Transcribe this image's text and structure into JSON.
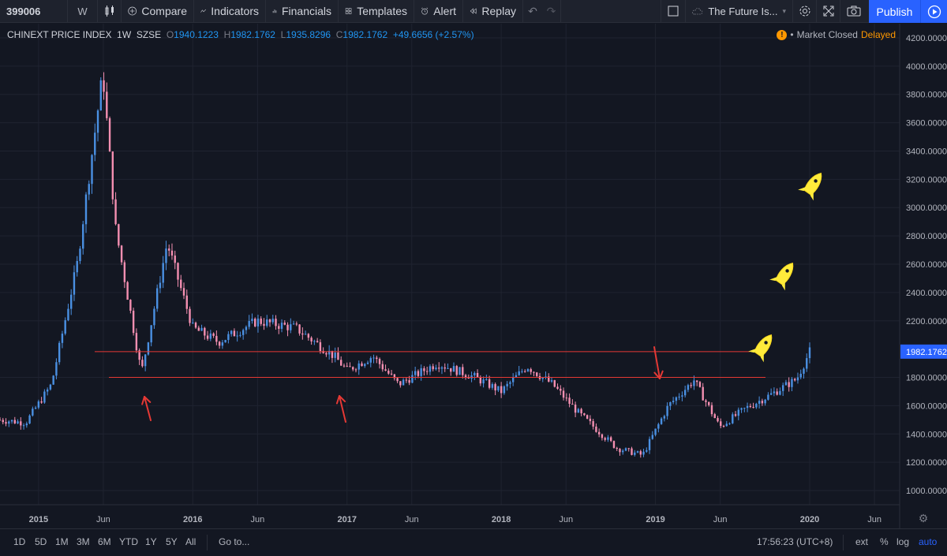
{
  "toolbar": {
    "symbol": "399006",
    "interval": "W",
    "compare": "Compare",
    "indicators": "Indicators",
    "financials": "Financials",
    "templates": "Templates",
    "alert": "Alert",
    "replay": "Replay",
    "layout_name": "The Future Is...",
    "publish": "Publish"
  },
  "legend": {
    "title": "CHINEXT PRICE INDEX",
    "interval": "1W",
    "exchange": "SZSE",
    "o_label": "O",
    "o": "1940.1223",
    "h_label": "H",
    "h": "1982.1762",
    "l_label": "L",
    "l": "1935.8296",
    "c_label": "C",
    "c": "1982.1762",
    "change": "+49.6656 (+2.57%)"
  },
  "status": {
    "market": "Market Closed",
    "delayed": "Delayed"
  },
  "price_axis": {
    "ticks": [
      "4200.0000",
      "4000.0000",
      "3800.0000",
      "3600.0000",
      "3400.0000",
      "3200.0000",
      "3000.0000",
      "2800.0000",
      "2600.0000",
      "2400.0000",
      "2200.0000",
      "1800.0000",
      "1600.0000",
      "1400.0000",
      "1200.0000",
      "1000.0000"
    ],
    "last_price": "1982.1762"
  },
  "time_axis": {
    "labels": [
      "2015",
      "Jun",
      "2016",
      "Jun",
      "2017",
      "Jun",
      "2018",
      "Jun",
      "2019",
      "Jun",
      "2020",
      "Jun"
    ]
  },
  "bottom": {
    "ranges": [
      "1D",
      "5D",
      "1M",
      "3M",
      "6M",
      "YTD",
      "1Y",
      "5Y",
      "All"
    ],
    "goto": "Go to...",
    "time": "17:56:23 (UTC+8)",
    "ext": "ext",
    "pct": "%",
    "log": "log",
    "auto": "auto"
  },
  "colors": {
    "up": "#4a90e2",
    "down": "#f48fb1",
    "line": "#e53935",
    "arrow": "#e53935",
    "rocket": "#ffeb3b",
    "accent": "#2962ff"
  },
  "chart_data": {
    "type": "candlestick",
    "title": "CHINEXT PRICE INDEX",
    "xlabel": "",
    "ylabel": "",
    "ylim": [
      900,
      4300
    ],
    "xlim": [
      "2014-10",
      "2020-08"
    ],
    "series": [
      {
        "values": [
          {
            "x": "2014-10",
            "y": 1500
          },
          {
            "x": "2014-12",
            "y": 1480
          },
          {
            "x": "2015-02",
            "y": 1750
          },
          {
            "x": "2015-04",
            "y": 2600
          },
          {
            "x": "2015-06",
            "y": 3950
          },
          {
            "x": "2015-07",
            "y": 2850
          },
          {
            "x": "2015-09",
            "y": 1830
          },
          {
            "x": "2015-11",
            "y": 2750
          },
          {
            "x": "2016-01",
            "y": 2150
          },
          {
            "x": "2016-03",
            "y": 2050
          },
          {
            "x": "2016-06",
            "y": 2200
          },
          {
            "x": "2016-09",
            "y": 2150
          },
          {
            "x": "2016-12",
            "y": 1950
          },
          {
            "x": "2017-01",
            "y": 1850
          },
          {
            "x": "2017-03",
            "y": 1950
          },
          {
            "x": "2017-05",
            "y": 1750
          },
          {
            "x": "2017-08",
            "y": 1900
          },
          {
            "x": "2017-11",
            "y": 1800
          },
          {
            "x": "2018-01",
            "y": 1700
          },
          {
            "x": "2018-03",
            "y": 1880
          },
          {
            "x": "2018-05",
            "y": 1750
          },
          {
            "x": "2018-07",
            "y": 1550
          },
          {
            "x": "2018-10",
            "y": 1300
          },
          {
            "x": "2018-12",
            "y": 1250
          },
          {
            "x": "2019-02",
            "y": 1600
          },
          {
            "x": "2019-04",
            "y": 1780
          },
          {
            "x": "2019-06",
            "y": 1450
          },
          {
            "x": "2019-08",
            "y": 1580
          },
          {
            "x": "2019-10",
            "y": 1680
          },
          {
            "x": "2019-12",
            "y": 1790
          },
          {
            "x": "2020-01",
            "y": 1982
          }
        ]
      }
    ],
    "annotations": {
      "hlines": [
        1800,
        1982
      ]
    }
  }
}
